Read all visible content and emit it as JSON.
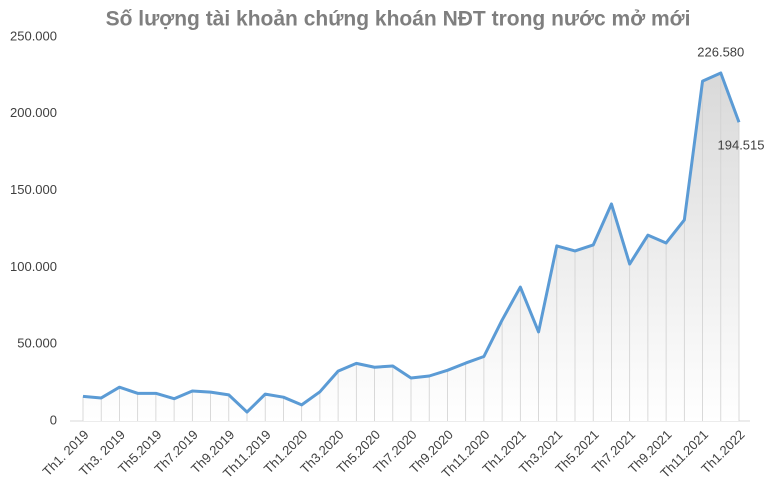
{
  "chart_data": {
    "type": "line",
    "title": "Số lượng tài khoản chứng khoán NĐT trong nước mở mới",
    "categories": [
      "Th1. 2019",
      null,
      "Th3. 2019",
      null,
      "Th5.2019",
      null,
      "Th7.2019",
      null,
      "Th9.2019",
      null,
      "Th11.2019",
      null,
      "Th1.2020",
      null,
      "Th3.2020",
      null,
      "Th5.2020",
      null,
      "Th7.2020",
      null,
      "Th9.2020",
      null,
      "Th11.2020",
      null,
      "Th1.2021",
      null,
      "Th3.2021",
      null,
      "Th5.2021",
      null,
      "Th7.2021",
      null,
      "Th9.2021",
      null,
      "Th11.2021",
      null,
      "Th1.2022"
    ],
    "series": [
      {
        "color": "#5b9bd5",
        "values": [
          16000,
          15000,
          22000,
          18000,
          18000,
          14500,
          19500,
          18800,
          17000,
          5800,
          17500,
          15500,
          10500,
          19000,
          32500,
          37500,
          35000,
          35800,
          28000,
          29300,
          33000,
          37700,
          42000,
          65700,
          87200,
          58000,
          114000,
          110700,
          114600,
          141300,
          102200,
          121000,
          115900,
          130900,
          221300,
          226580,
          194515
        ],
        "value_labels": [
          null,
          null,
          null,
          null,
          null,
          null,
          null,
          null,
          null,
          null,
          null,
          null,
          null,
          null,
          null,
          null,
          null,
          null,
          null,
          null,
          null,
          null,
          null,
          null,
          null,
          null,
          null,
          null,
          null,
          null,
          null,
          null,
          null,
          null,
          null,
          "226.580",
          "194.515"
        ]
      }
    ],
    "ylim": [
      0,
      250000
    ],
    "yticks": [
      0,
      {
        "value": 50000,
        "label": "50.000"
      },
      {
        "value": 100000,
        "label": "100.000"
      },
      {
        "value": 150000,
        "label": "150.000"
      },
      {
        "value": 200000,
        "label": "200.000"
      },
      {
        "value": 250000,
        "label": "250.000"
      }
    ],
    "grid": false
  }
}
